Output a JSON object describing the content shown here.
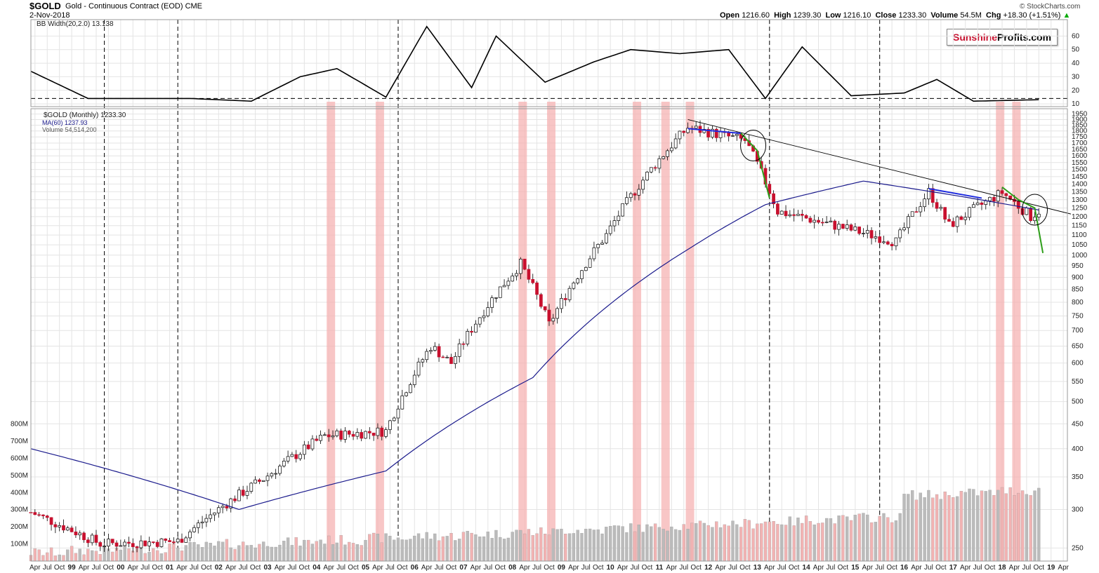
{
  "header": {
    "symbol": "$GOLD",
    "description": "Gold - Continuous Contract (EOD)",
    "exchange": "CME",
    "date": "2-Nov-2018",
    "copyright": "© StockCharts.com",
    "ohlc": {
      "open_label": "Open",
      "open": "1216.60",
      "high_label": "High",
      "high": "1239.30",
      "low_label": "Low",
      "low": "1216.10",
      "close_label": "Close",
      "close": "1233.30",
      "volume_label": "Volume",
      "volume": "54.5M",
      "chg_label": "Chg",
      "chg": "+18.30 (+1.51%)"
    }
  },
  "logo": {
    "part1": "Sunshine",
    "part2": "Profits.com"
  },
  "indicator_legend": "BB Width(20,2.0) 13.138",
  "price_legend": {
    "main": "$GOLD (Monthly) 1233.30",
    "ma": "MA(60) 1237.93",
    "volume": "Volume 54,514,200"
  },
  "colors": {
    "up": "#ffffff",
    "down": "#c8102e",
    "ma": "#1a1a8c",
    "highlight": "#f5b3b3",
    "trend_blue": "#1e2be0",
    "trend_green": "#2e9e1a"
  },
  "chart_data": {
    "type": "candlestick",
    "title": "$GOLD Gold - Continuous Contract (EOD) Monthly",
    "x_tick_labels": [
      "Apr",
      "Jul",
      "Oct",
      "99",
      "Apr",
      "Jul",
      "Oct",
      "00",
      "Apr",
      "Jul",
      "Oct",
      "01",
      "Apr",
      "Jul",
      "Oct",
      "02",
      "Apr",
      "Jul",
      "Oct",
      "03",
      "Apr",
      "Jul",
      "Oct",
      "04",
      "Apr",
      "Jul",
      "Oct",
      "05",
      "Apr",
      "Jul",
      "Oct",
      "06",
      "Apr",
      "Jul",
      "Oct",
      "07",
      "Apr",
      "Jul",
      "Oct",
      "08",
      "Apr",
      "Jul",
      "Oct",
      "09",
      "Apr",
      "Jul",
      "Oct",
      "10",
      "Apr",
      "Jul",
      "Oct",
      "11",
      "Apr",
      "Jul",
      "Oct",
      "12",
      "Apr",
      "Jul",
      "Oct",
      "13",
      "Apr",
      "Jul",
      "Oct",
      "14",
      "Apr",
      "Jul",
      "Oct",
      "15",
      "Apr",
      "Jul",
      "Oct",
      "16",
      "Apr",
      "Jul",
      "Oct",
      "17",
      "Apr",
      "Jul",
      "Oct",
      "18",
      "Apr",
      "Jul",
      "Oct",
      "19",
      "Apr"
    ],
    "price_axis_ticks": [
      250,
      300,
      350,
      400,
      450,
      500,
      550,
      600,
      650,
      700,
      750,
      800,
      850,
      900,
      950,
      1000,
      1050,
      1100,
      1150,
      1200,
      1250,
      1300,
      1350,
      1400,
      1450,
      1500,
      1550,
      1600,
      1650,
      1700,
      1750,
      1800,
      1850,
      1900,
      1950
    ],
    "volume_axis_ticks": [
      "100M",
      "200M",
      "300M",
      "400M",
      "500M",
      "600M",
      "700M",
      "800M"
    ],
    "bbwidth_axis_ticks": [
      10,
      20,
      30,
      40,
      50,
      60
    ],
    "price_key_points": [
      {
        "date": "1998-03",
        "close": 296
      },
      {
        "date": "1999-08",
        "close": 255
      },
      {
        "date": "2001-03",
        "close": 258
      },
      {
        "date": "2002-12",
        "close": 347
      },
      {
        "date": "2004-03",
        "close": 425
      },
      {
        "date": "2005-06",
        "close": 435
      },
      {
        "date": "2006-05",
        "close": 650
      },
      {
        "date": "2006-10",
        "close": 600
      },
      {
        "date": "2008-03",
        "close": 960
      },
      {
        "date": "2008-10",
        "close": 720
      },
      {
        "date": "2009-12",
        "close": 1100
      },
      {
        "date": "2011-08",
        "close": 1830
      },
      {
        "date": "2012-10",
        "close": 1720
      },
      {
        "date": "2013-06",
        "close": 1230
      },
      {
        "date": "2015-11",
        "close": 1065
      },
      {
        "date": "2016-07",
        "close": 1350
      },
      {
        "date": "2016-12",
        "close": 1150
      },
      {
        "date": "2018-01",
        "close": 1345
      },
      {
        "date": "2018-08",
        "close": 1200
      },
      {
        "date": "2018-10",
        "close": 1233
      }
    ],
    "ma60_key_points": [
      {
        "date": "1998-03",
        "value": 400
      },
      {
        "date": "2002-06",
        "value": 300
      },
      {
        "date": "2005-06",
        "value": 360
      },
      {
        "date": "2008-06",
        "value": 560
      },
      {
        "date": "2011-09",
        "value": 1040
      },
      {
        "date": "2013-03",
        "value": 1270
      },
      {
        "date": "2015-03",
        "value": 1420
      },
      {
        "date": "2017-03",
        "value": 1320
      },
      {
        "date": "2018-10",
        "value": 1238
      }
    ],
    "bbwidth_key_points": [
      {
        "date": "1998-03",
        "value": 34
      },
      {
        "date": "1999-05",
        "value": 14
      },
      {
        "date": "2001-06",
        "value": 14
      },
      {
        "date": "2002-09",
        "value": 12
      },
      {
        "date": "2003-09",
        "value": 30
      },
      {
        "date": "2004-06",
        "value": 36
      },
      {
        "date": "2005-06",
        "value": 15
      },
      {
        "date": "2006-04",
        "value": 67
      },
      {
        "date": "2007-03",
        "value": 22
      },
      {
        "date": "2007-09",
        "value": 60
      },
      {
        "date": "2008-09",
        "value": 26
      },
      {
        "date": "2009-09",
        "value": 41
      },
      {
        "date": "2010-06",
        "value": 50
      },
      {
        "date": "2011-06",
        "value": 47
      },
      {
        "date": "2012-06",
        "value": 50
      },
      {
        "date": "2013-03",
        "value": 14
      },
      {
        "date": "2013-12",
        "value": 52
      },
      {
        "date": "2014-12",
        "value": 16
      },
      {
        "date": "2016-01",
        "value": 18
      },
      {
        "date": "2016-09",
        "value": 28
      },
      {
        "date": "2017-06",
        "value": 12
      },
      {
        "date": "2018-10",
        "value": 13.1
      }
    ],
    "highlighted_months": [
      "2004-04",
      "2005-04",
      "2008-03",
      "2008-10",
      "2010-07",
      "2011-02",
      "2011-08",
      "2017-12",
      "2018-04"
    ],
    "vertical_dashed_markers": [
      "1999-09",
      "2001-03",
      "2005-09",
      "2013-04",
      "2015-07"
    ]
  }
}
